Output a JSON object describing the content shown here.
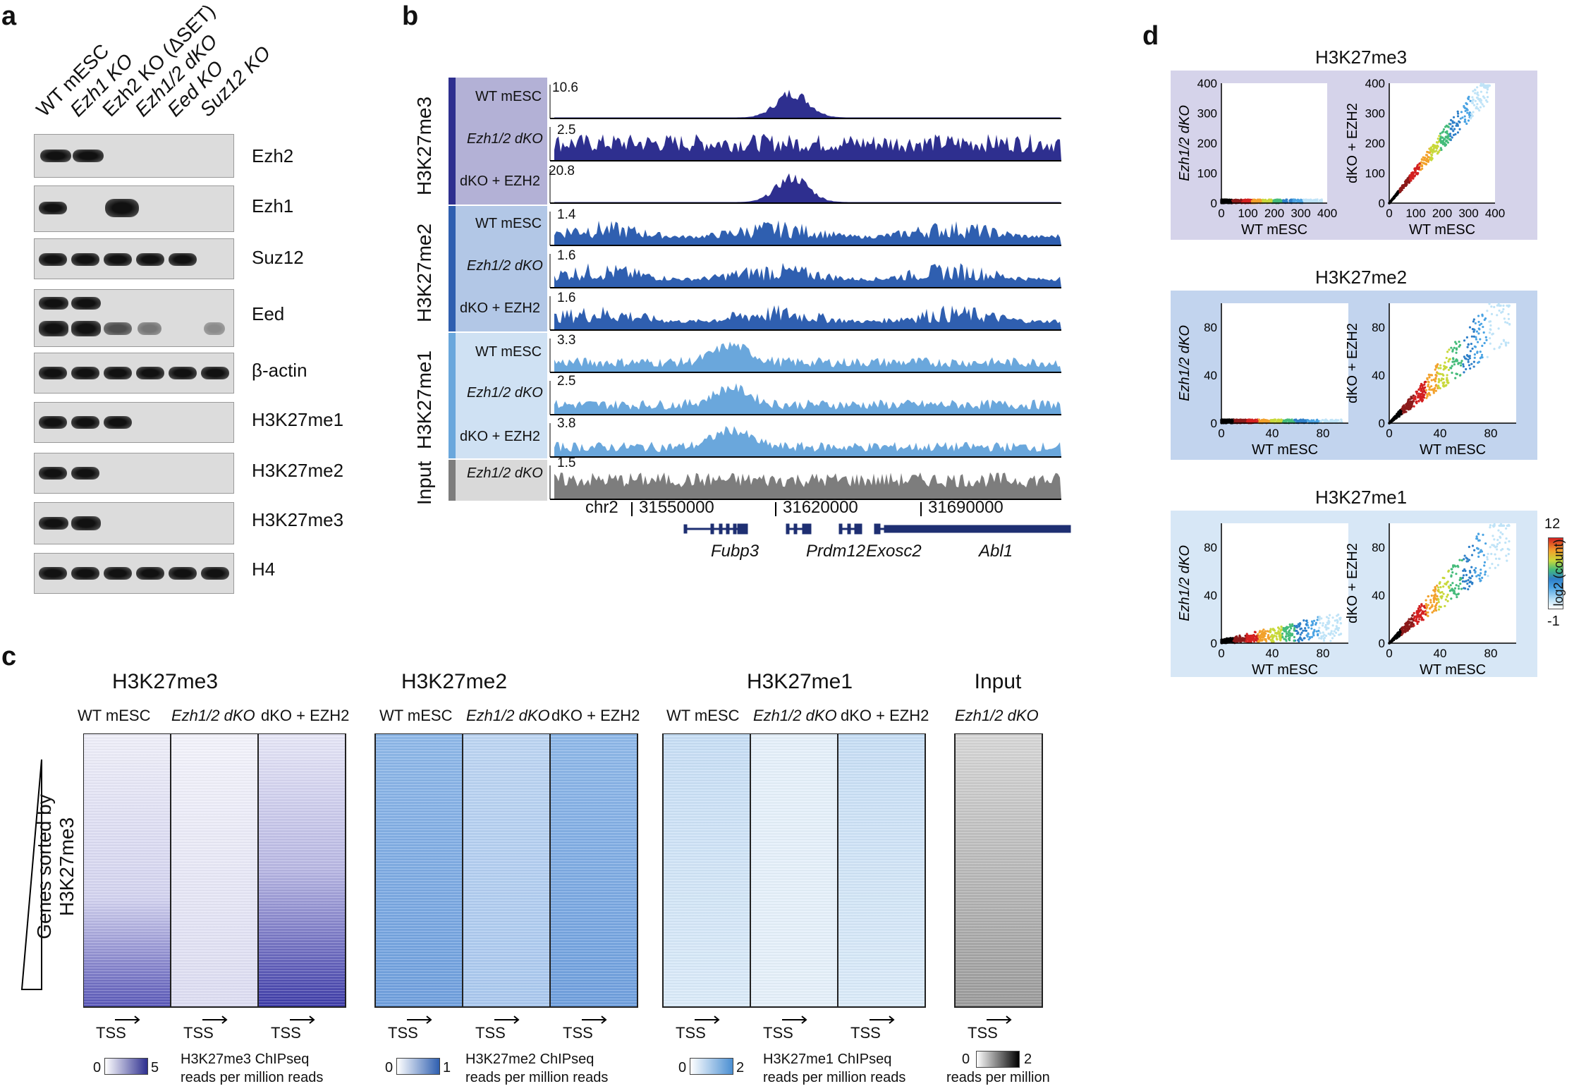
{
  "panels": {
    "a": "a",
    "b": "b",
    "c": "c",
    "d": "d"
  },
  "blot": {
    "lanes": [
      "WT mESC",
      "Ezh1 KO",
      "Ezh2 KO (ΔSET)",
      "Ezh1/2 dKO",
      "Eed KO",
      "Suz12 KO"
    ],
    "rows": [
      "Ezh2",
      "Ezh1",
      "Suz12",
      "Eed",
      "β-actin",
      "H3K27me1",
      "H3K27me2",
      "H3K27me3",
      "H4"
    ]
  },
  "tracks": {
    "groups": [
      "H3K27me3",
      "H3K27me2",
      "H3K27me1",
      "Input"
    ],
    "colors": {
      "me3": "#2e2f8f",
      "me2": "#2f5fb0",
      "me1": "#6aa7dc",
      "input": "#7d7d7d"
    },
    "rows": [
      {
        "label": "WT mESC",
        "scale": "10.6"
      },
      {
        "label": "Ezh1/2 dKO",
        "scale": "2.5"
      },
      {
        "label": "dKO + EZH2",
        "scale": "20.8"
      },
      {
        "label": "WT mESC",
        "scale": "1.4"
      },
      {
        "label": "Ezh1/2 dKO",
        "scale": "1.6"
      },
      {
        "label": "dKO + EZH2",
        "scale": "1.6"
      },
      {
        "label": "WT mESC",
        "scale": "3.3"
      },
      {
        "label": "Ezh1/2 dKO",
        "scale": "2.5"
      },
      {
        "label": "dKO + EZH2",
        "scale": "3.8"
      },
      {
        "label": "Ezh1/2 dKO",
        "scale": "1.5"
      }
    ],
    "chrom": "chr2",
    "coords": [
      "31550000",
      "31620000",
      "31690000"
    ],
    "genes": [
      "Fubp3",
      "Prdm12",
      "Exosc2",
      "Abl1"
    ]
  },
  "heatmaps": {
    "titles": [
      "H3K27me3",
      "H3K27me2",
      "H3K27me1",
      "Input"
    ],
    "col_labels": [
      "WT mESC",
      "Ezh1/2 dKO",
      "dKO + EZH2"
    ],
    "input_col_label": "Ezh1/2 dKO",
    "tss": "TSS",
    "y_label": "Genes sorted by H3K27me3",
    "legends": [
      {
        "min": "0",
        "max": "5",
        "line1": "H3K27me3 ChIPseq",
        "line2": "reads per million reads"
      },
      {
        "min": "0",
        "max": "1",
        "line1": "H3K27me2 ChIPseq",
        "line2": "reads per million reads"
      },
      {
        "min": "0",
        "max": "2",
        "line1": "H3K27me1 ChIPseq",
        "line2": "reads per million reads"
      },
      {
        "min": "0",
        "max": "2",
        "line1": "reads per million"
      }
    ]
  },
  "chart_data": [
    {
      "type": "scatter",
      "title": "H3K27me3",
      "xlabel": "WT mESC",
      "ylabel": "Ezh1/2 dKO",
      "xlim": [
        0,
        400
      ],
      "ylim": [
        0,
        400
      ],
      "xticks": [
        "0",
        "100",
        "200",
        "300",
        "400"
      ],
      "yticks": [
        "0",
        "100",
        "200",
        "300",
        "400"
      ]
    },
    {
      "type": "scatter",
      "title": "H3K27me3",
      "xlabel": "WT mESC",
      "ylabel": "dKO + EZH2",
      "xlim": [
        0,
        400
      ],
      "ylim": [
        0,
        400
      ],
      "xticks": [
        "0",
        "100",
        "200",
        "300",
        "400"
      ],
      "yticks": [
        "0",
        "100",
        "200",
        "300",
        "400"
      ]
    },
    {
      "type": "scatter",
      "title": "H3K27me2",
      "xlabel": "WT mESC",
      "ylabel": "Ezh1/2 dKO",
      "xlim": [
        0,
        100
      ],
      "ylim": [
        0,
        100
      ],
      "xticks": [
        "0",
        "40",
        "80"
      ],
      "yticks": [
        "0",
        "40",
        "80"
      ]
    },
    {
      "type": "scatter",
      "title": "H3K27me2",
      "xlabel": "WT mESC",
      "ylabel": "dKO + EZH2",
      "xlim": [
        0,
        100
      ],
      "ylim": [
        0,
        100
      ],
      "xticks": [
        "0",
        "40",
        "80"
      ],
      "yticks": [
        "0",
        "40",
        "80"
      ]
    },
    {
      "type": "scatter",
      "title": "H3K27me1",
      "xlabel": "WT mESC",
      "ylabel": "Ezh1/2 dKO",
      "xlim": [
        0,
        100
      ],
      "ylim": [
        0,
        100
      ],
      "xticks": [
        "0",
        "40",
        "80"
      ],
      "yticks": [
        "0",
        "40",
        "80"
      ]
    },
    {
      "type": "scatter",
      "title": "H3K27me1",
      "xlabel": "WT mESC",
      "ylabel": "dKO + EZH2",
      "xlim": [
        0,
        100
      ],
      "ylim": [
        0,
        100
      ],
      "xticks": [
        "0",
        "40",
        "80"
      ],
      "yticks": [
        "0",
        "40",
        "80"
      ]
    }
  ],
  "colorbar": {
    "max": "12",
    "min": "-1",
    "label": "log2 (count)"
  }
}
